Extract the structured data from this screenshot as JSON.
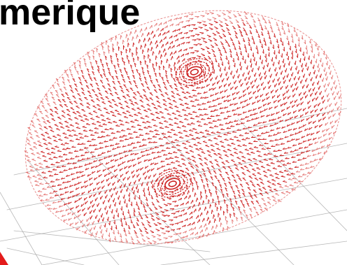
{
  "title": "merique",
  "colors": {
    "mesh": "#cc1f1f",
    "mesh_light": "#e0605e",
    "grid": "#9a9a9a",
    "marker": "#e31b1b",
    "background": "#ffffff",
    "title": "#000000"
  },
  "figure": {
    "kind": "vector-field-mesh",
    "surface": "ellipsoid",
    "vortex_count": 2
  }
}
